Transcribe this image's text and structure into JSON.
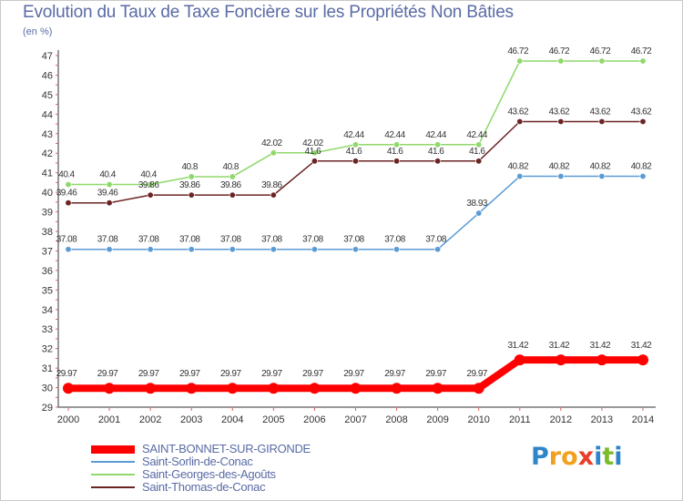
{
  "title": "Evolution du Taux de Taxe Foncière sur les Propriétés Non Bâties",
  "unit": "(en %)",
  "logo": {
    "letters": [
      "P",
      "r",
      "o",
      "x",
      "i",
      "t",
      "i"
    ],
    "colors": [
      "#2e86c8",
      "#f2a11f",
      "#f2a11f",
      "#e83e2a",
      "#2e86c8",
      "#7dbb2d",
      "#2e86c8"
    ]
  },
  "chart_data": {
    "type": "line",
    "title": "Evolution du Taux de Taxe Foncière sur les Propriétés Non Bâties",
    "ylabel": "(en %)",
    "xlabel": "",
    "ylim": [
      29,
      47
    ],
    "yticks": [
      29,
      30,
      31,
      32,
      33,
      34,
      35,
      36,
      37,
      38,
      39,
      40,
      41,
      42,
      43,
      44,
      45,
      46,
      47
    ],
    "categories": [
      "2000",
      "2001",
      "2002",
      "2003",
      "2004",
      "2005",
      "2006",
      "2007",
      "2008",
      "2009",
      "2010",
      "2011",
      "2012",
      "2013",
      "2014"
    ],
    "grid": false,
    "series": [
      {
        "name": "SAINT-BONNET-SUR-GIRONDE",
        "color": "#ff0000",
        "labels": [
          "29.97",
          "29.97",
          "29.97",
          "29.97",
          "29.97",
          "29.97",
          "29.97",
          "29.97",
          "29.97",
          "29.97",
          "29.97",
          "31.42",
          "31.42",
          "31.42",
          "31.42"
        ],
        "values": [
          29.97,
          29.97,
          29.97,
          29.97,
          29.97,
          29.97,
          29.97,
          29.97,
          29.97,
          29.97,
          29.97,
          31.42,
          31.42,
          31.42,
          31.42
        ]
      },
      {
        "name": "Saint-Sorlin-de-Conac",
        "color": "#5b9bd5",
        "labels": [
          "37.08",
          "37.08",
          "37.08",
          "37.08",
          "37.08",
          "37.08",
          "37.08",
          "37.08",
          "37.08",
          "37.08",
          "38.93",
          "40.82",
          "40.82",
          "40.82",
          "40.82"
        ],
        "values": [
          37.08,
          37.08,
          37.08,
          37.08,
          37.08,
          37.08,
          37.08,
          37.08,
          37.08,
          37.08,
          38.93,
          40.82,
          40.82,
          40.82,
          40.82
        ]
      },
      {
        "name": "Saint-Georges-des-Agoûts",
        "color": "#8fd86a",
        "labels": [
          "40.4",
          "40.4",
          "40.4",
          "40.8",
          "40.8",
          "42.02",
          "42.02",
          "42.44",
          "42.44",
          "42.44",
          "42.44",
          "46.72",
          "46.72",
          "46.72",
          "46.72"
        ],
        "values": [
          40.4,
          40.4,
          40.4,
          40.8,
          40.8,
          42.02,
          42.02,
          42.44,
          42.44,
          42.44,
          42.44,
          46.72,
          46.72,
          46.72,
          46.72
        ]
      },
      {
        "name": "Saint-Thomas-de-Conac",
        "color": "#6b2424",
        "labels": [
          "39.46",
          "39.46",
          "39.86",
          "39.86",
          "39.86",
          "39.86",
          "41.6",
          "41.6",
          "41.6",
          "41.6",
          "41.6",
          "43.62",
          "43.62",
          "43.62",
          "43.62"
        ],
        "values": [
          39.46,
          39.46,
          39.86,
          39.86,
          39.86,
          39.86,
          41.6,
          41.6,
          41.6,
          41.6,
          41.6,
          43.62,
          43.62,
          43.62,
          43.62
        ]
      }
    ],
    "legend": [
      "SAINT-BONNET-SUR-GIRONDE",
      "Saint-Sorlin-de-Conac",
      "Saint-Georges-des-Agoûts",
      "Saint-Thomas-de-Conac"
    ]
  }
}
